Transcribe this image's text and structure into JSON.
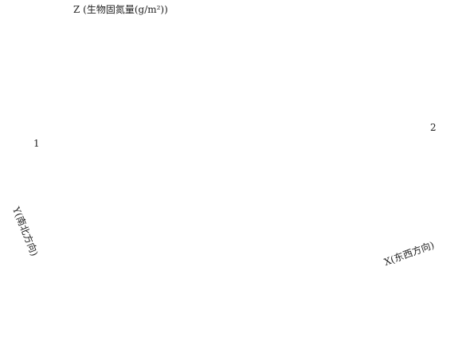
{
  "z_axis_label": "Z (生物固氮量(g/m²))",
  "y_axis_label": "Y(南北方向)",
  "x_axis_label": "X(东西方向)",
  "trend_labels": [
    "1",
    "2"
  ]
}
